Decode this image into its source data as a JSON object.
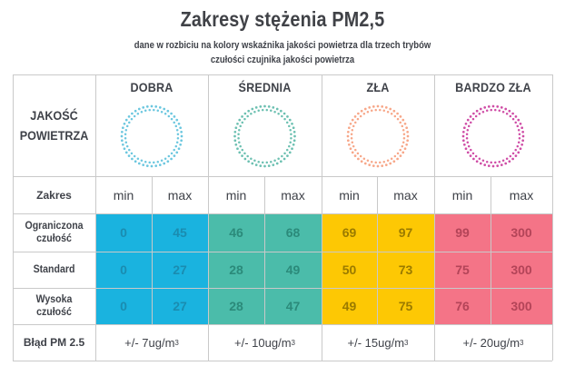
{
  "title": "Zakresy stężenia PM2,5",
  "subtitle_line1": "dane w rozbiciu na kolory wskaźnika jakości powietrza dla trzech trybów",
  "subtitle_line2": "czułości czujnika jakości powietrza",
  "header_label_line1": "JAKOŚĆ",
  "header_label_line2": "POWIETRZA",
  "categories": [
    {
      "name": "DOBRA",
      "color": "#1ab3df",
      "ring_color": "#6cc7df",
      "value_text_color": "#1a8cb0"
    },
    {
      "name": "ŚREDNIA",
      "color": "#4bbcaa",
      "ring_color": "#6cc0b1",
      "value_text_color": "#2b8a7a"
    },
    {
      "name": "ZŁA",
      "color": "#fdc804",
      "ring_color": "#f7a789",
      "value_text_color": "#9a7a00"
    },
    {
      "name": "BARDZO ZŁA",
      "color": "#f47487",
      "ring_color": "#cf4da6",
      "value_text_color": "#b34458"
    }
  ],
  "range_label": "Zakres",
  "min_label": "min",
  "max_label": "max",
  "rows": [
    {
      "label_line1": "Ograniczona",
      "label_line2": "czułość",
      "values": [
        "0",
        "45",
        "46",
        "68",
        "69",
        "97",
        "99",
        "300"
      ]
    },
    {
      "label_line1": "Standard",
      "label_line2": "",
      "values": [
        "0",
        "27",
        "28",
        "49",
        "50",
        "73",
        "75",
        "300"
      ]
    },
    {
      "label_line1": "Wysoka",
      "label_line2": "czułość",
      "values": [
        "0",
        "27",
        "28",
        "47",
        "49",
        "75",
        "76",
        "300"
      ]
    }
  ],
  "error_label": "Błąd PM 2.5",
  "errors": [
    "+/- 7ug/m",
    "+/- 10ug/m",
    "+/- 15ug/m",
    "+/- 20ug/m"
  ],
  "error_unit_sup": "3"
}
